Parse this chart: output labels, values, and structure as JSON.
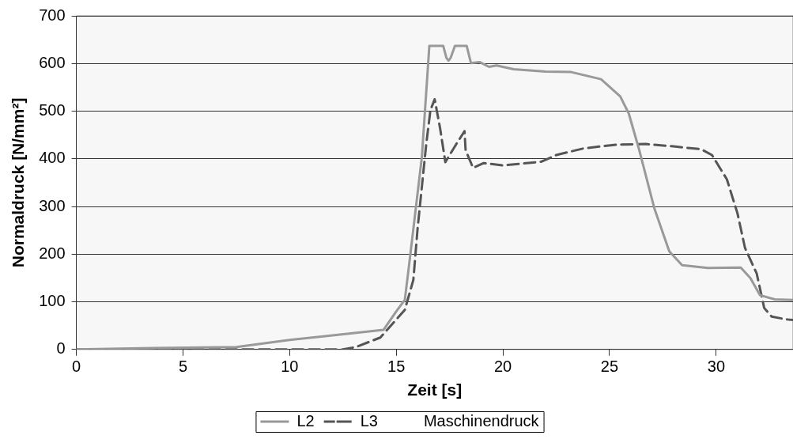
{
  "chart_data": {
    "type": "line",
    "xlabel": "Zeit [s]",
    "ylabel": "Normaldruck [N/mm²]",
    "xlim": [
      0,
      33.6
    ],
    "xticks": [
      0,
      5,
      10,
      15,
      20,
      25,
      30
    ],
    "ylim": [
      0,
      700
    ],
    "yticks": [
      0,
      100,
      200,
      300,
      400,
      500,
      600,
      700
    ],
    "grid": "y",
    "legend": "bottom",
    "marker": "none",
    "series": [
      {
        "name": "L2",
        "color": "#999999",
        "line_style": "solid",
        "x": [
          0,
          3.6,
          7.5,
          10,
          12.1,
          14.4,
          15,
          15.4,
          15.6,
          16.2,
          16.55,
          17.2,
          17.35,
          17.45,
          17.55,
          17.75,
          18.3,
          18.5,
          18.9,
          19.35,
          19.7,
          20.5,
          22,
          23.2,
          24.6,
          25.5,
          25.9,
          26.4,
          27.1,
          27.8,
          28.4,
          29.6,
          31.15,
          31.6,
          32.05,
          32.75,
          33.6
        ],
        "values": [
          0,
          3,
          5,
          20,
          30,
          41,
          80,
          104,
          177,
          404,
          637,
          637,
          612,
          606,
          612,
          637,
          637,
          601,
          603,
          593,
          596,
          588,
          583,
          582,
          567,
          531,
          495,
          417,
          296,
          206,
          177,
          171,
          172,
          150,
          114,
          105,
          104
        ]
      },
      {
        "name": "L3",
        "color": "#555555",
        "line_style": "dashed",
        "x": [
          0,
          12.5,
          13.1,
          14.25,
          15.4,
          15.8,
          16,
          16.4,
          16.6,
          16.8,
          17.05,
          17.3,
          17.8,
          18.2,
          18.25,
          18.6,
          19.1,
          20,
          21.8,
          22.5,
          23.8,
          25.4,
          26.7,
          28,
          29.3,
          29.8,
          30.5,
          31,
          31.35,
          31.9,
          32.25,
          32.6,
          33.3,
          33.6
        ],
        "values": [
          0,
          0,
          5,
          25,
          83,
          146,
          254,
          429,
          502,
          525,
          465,
          393,
          430,
          458,
          418,
          381,
          391,
          386,
          394,
          408,
          422,
          430,
          431,
          426,
          420,
          408,
          357,
          285,
          213,
          159,
          87,
          69,
          63,
          62
        ]
      },
      {
        "name": "Maschinendruck"
      }
    ]
  }
}
